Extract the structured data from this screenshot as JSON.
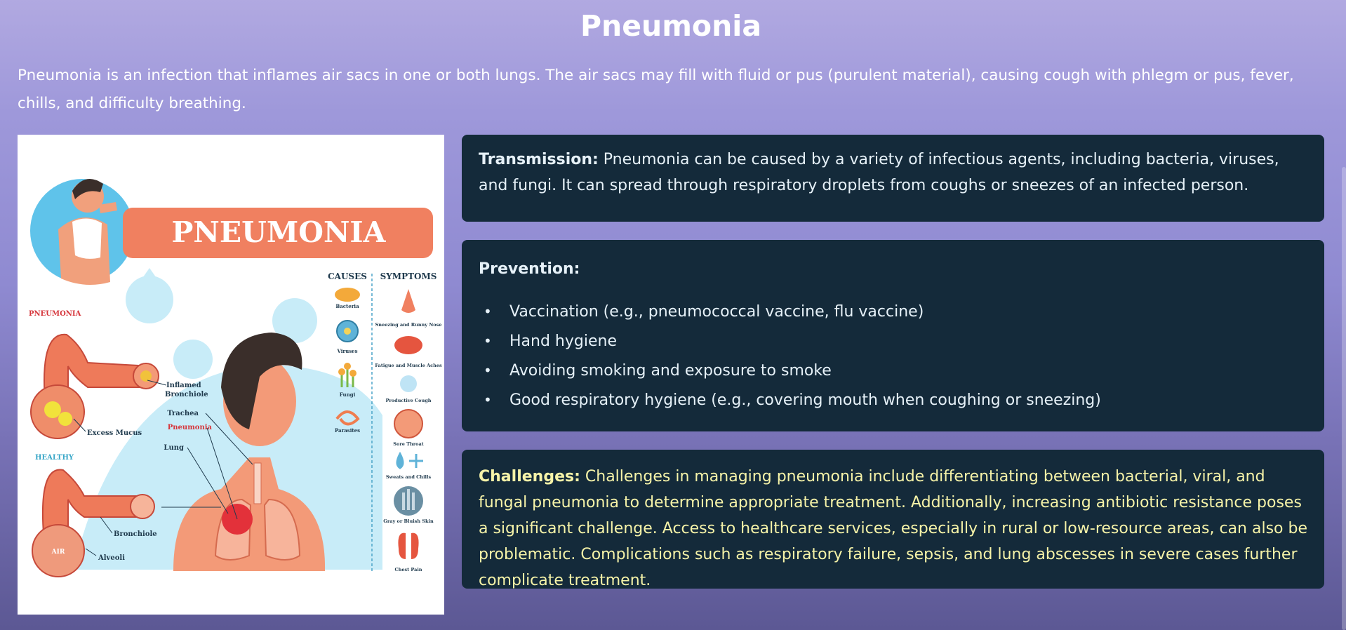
{
  "page": {
    "title": "Pneumonia",
    "intro": "Pneumonia is an infection that inflames air sacs in one or both lungs. The air sacs may fill with fluid or pus (purulent material), causing cough with phlegm or pus, fever, chills, and difficulty breathing."
  },
  "infographic": {
    "banner": "PNEUMONIA",
    "causes_header": "CAUSES",
    "symptoms_header": "SYMPTOMS",
    "causes": [
      "Bacteria",
      "Viruses",
      "Fungi",
      "Parasites"
    ],
    "symptoms": [
      "Sneezing and Runny Nose",
      "Fatigue and Muscle Aches",
      "Productive Cough",
      "Sore Throat",
      "Sweats and Chills",
      "Gray or Bluish Skin",
      "Chest Pain"
    ],
    "labels": {
      "pneumonia_tag": "PNEUMONIA",
      "inflamed": "Inflamed",
      "bronchiole_inflamed": "Bronchiole",
      "excess_mucus": "Excess Mucus",
      "healthy_tag": "HEALTHY",
      "bronchiole": "Bronchiole",
      "alveoli": "Alveoli",
      "air": "AIR",
      "trachea": "Trachea",
      "pneumonia_lung": "Pneumonia",
      "lung": "Lung"
    }
  },
  "transmission": {
    "label": "Transmission:",
    "text": " Pneumonia can be caused by a variety of infectious agents, including bacteria, viruses, and fungi. It can spread through respiratory droplets from coughs or sneezes of an infected person."
  },
  "prevention": {
    "label": "Prevention:",
    "bullet": "•",
    "items": [
      "Vaccination (e.g., pneumococcal vaccine, flu vaccine)",
      "Hand hygiene",
      "Avoiding smoking and exposure to smoke",
      "Good respiratory hygiene (e.g., covering mouth when coughing or sneezing)"
    ]
  },
  "challenges": {
    "label": "Challenges:",
    "text": " Challenges in managing pneumonia include differentiating between bacterial, viral, and fungal pneumonia to determine appropriate treatment. Additionally, increasing antibiotic resistance poses a significant challenge. Access to healthcare services, especially in rural or low-resource areas, can also be problematic. Complications such as respiratory failure, sepsis, and lung abscesses in severe cases further complicate treatment."
  },
  "colors": {
    "card_bg": "#142a3a",
    "card_text": "#e6f1f8",
    "challenges_text": "#f6f3a8",
    "banner": "#f08060",
    "skin": "#f39a78",
    "sky": "#c8ecf8"
  }
}
